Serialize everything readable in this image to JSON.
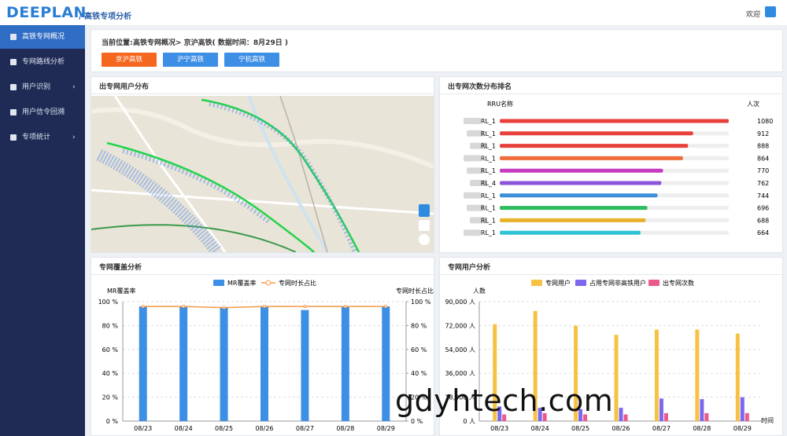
{
  "header": {
    "logo": "DEEPLAN",
    "subtitle": "/ 高铁专项分析",
    "welcome": "欢迎"
  },
  "sidebar": {
    "items": [
      {
        "label": "高铁专网概况",
        "active": true
      },
      {
        "label": "专网路线分析",
        "active": false
      },
      {
        "label": "用户识别",
        "active": false
      },
      {
        "label": "用户信令回溯",
        "active": false
      },
      {
        "label": "专项统计",
        "active": false
      }
    ]
  },
  "breadcrumb": {
    "label": "当前位置:",
    "path": "高铁专网概况> 京沪高铁( 数据时间：8月29日 )"
  },
  "tabs": [
    {
      "label": "京沪高铁",
      "active": true
    },
    {
      "label": "沪宁高铁",
      "active": false
    },
    {
      "label": "宁杭高铁",
      "active": false
    }
  ],
  "map_panel": {
    "title": "出专网用户分布"
  },
  "watermark": "gdyhtech.com",
  "chart_data": [
    {
      "type": "hbar",
      "title": "出专网次数分布排名",
      "category_header": "RRU名称",
      "value_header": "人次",
      "categories": [
        "RL_1",
        "RL_1",
        "RL_1",
        "RL_1",
        "RL_1",
        "RL_4",
        "RL_1",
        "RL_1",
        "RL_1",
        "RL_1"
      ],
      "values": [
        1080,
        912,
        888,
        864,
        770,
        762,
        744,
        696,
        688,
        664
      ],
      "colors": [
        "#e8413c",
        "#e8413c",
        "#e8413c",
        "#ef6b3a",
        "#c63cc0",
        "#8a55d8",
        "#3a8fd6",
        "#2dbb5d",
        "#e9b22b",
        "#2ec4d6"
      ]
    },
    {
      "type": "bar_line",
      "title": "专网覆盖分析",
      "y_label": "MR覆盖率",
      "y2_label": "专网时长占比",
      "categories": [
        "08/23",
        "08/24",
        "08/25",
        "08/26",
        "08/27",
        "08/28",
        "08/29"
      ],
      "series": [
        {
          "name": "MR覆盖率",
          "color": "#3d8fe6",
          "values": [
            96,
            96,
            95,
            96,
            93,
            96,
            96
          ]
        },
        {
          "name": "专网时长占比",
          "color": "#f39a45",
          "values": [
            96,
            96,
            95,
            96,
            96,
            96,
            96
          ],
          "axis": "y2"
        }
      ],
      "ylim": [
        0,
        100
      ],
      "yticks": [
        {
          "value": 0,
          "label": "0 %"
        },
        {
          "value": 20,
          "label": "20 %"
        },
        {
          "value": 40,
          "label": "40 %"
        },
        {
          "value": 60,
          "label": "60 %"
        },
        {
          "value": 80,
          "label": "80 %"
        },
        {
          "value": 100,
          "label": "100 %"
        }
      ],
      "y2lim": [
        0,
        100
      ],
      "y2ticks": [
        {
          "value": 0,
          "label": "0 %"
        },
        {
          "value": 20,
          "label": "20 %"
        },
        {
          "value": 40,
          "label": "40 %"
        },
        {
          "value": 60,
          "label": "60 %"
        },
        {
          "value": 80,
          "label": "80 %"
        },
        {
          "value": 100,
          "label": "100 %"
        }
      ],
      "grid": true
    },
    {
      "type": "grouped_bar",
      "title": "专网用户分析",
      "y_label": "人数",
      "x_label": "时间",
      "categories": [
        "08/23",
        "08/24",
        "08/25",
        "08/26",
        "08/27",
        "08/28",
        "08/29"
      ],
      "series": [
        {
          "name": "专网用户",
          "color": "#f7c244",
          "values": [
            73000,
            83000,
            72000,
            65000,
            69000,
            69000,
            66000
          ]
        },
        {
          "name": "占用专网非高铁用户",
          "color": "#7b68ee",
          "values": [
            11000,
            10000,
            9000,
            10000,
            17000,
            16500,
            18000
          ]
        },
        {
          "name": "出专网次数",
          "color": "#ec5a8c",
          "values": [
            5000,
            6000,
            5000,
            5000,
            6000,
            6000,
            6000
          ]
        }
      ],
      "ylim": [
        0,
        90000
      ],
      "yticks": [
        {
          "value": 0,
          "label": "0 人"
        },
        {
          "value": 18000,
          "label": "18,000 人"
        },
        {
          "value": 36000,
          "label": "36,000 人"
        },
        {
          "value": 54000,
          "label": "54,000 人"
        },
        {
          "value": 72000,
          "label": "72,000 人"
        },
        {
          "value": 90000,
          "label": "90,000 人"
        }
      ],
      "grid": true
    }
  ]
}
